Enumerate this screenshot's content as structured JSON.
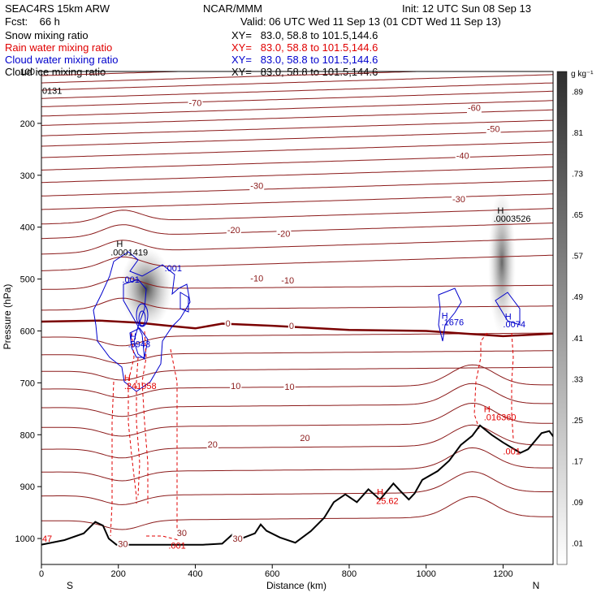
{
  "header": {
    "model": "SEAC4RS 15km ARW",
    "fcst": "Fcst:    66 h",
    "center": "NCAR/MMM",
    "init": "Init: 12 UTC Sun 08 Sep 13",
    "valid": "Valid: 06 UTC Wed 11 Sep 13 (01 CDT Wed 11 Sep 13)",
    "fields": [
      {
        "name": "Snow mixing ratio",
        "xy": "XY=   83.0, 58.8 to 101.5,144.6",
        "color": "#000000"
      },
      {
        "name": "Rain water mixing ratio",
        "xy": "XY=   83.0, 58.8 to 101.5,144.6",
        "color": "#e00000"
      },
      {
        "name": "Cloud water mixing ratio",
        "xy": "XY=   83.0, 58.8 to 101.5,144.6",
        "color": "#0000cc"
      },
      {
        "name": "Cloud ice mixing ratio",
        "xy": "XY=   83.0, 58.8 to 101.5,144.6",
        "color": "#000000"
      }
    ]
  },
  "chart_data": {
    "type": "contour-cross-section",
    "xlabel": "Distance (km)",
    "ylabel": "Pressure (hPa)",
    "xlim": [
      0,
      1330
    ],
    "ylim": [
      1050,
      100
    ],
    "xticks": [
      0,
      200,
      400,
      600,
      800,
      1000,
      1200
    ],
    "yticks": [
      100,
      200,
      300,
      400,
      500,
      600,
      700,
      800,
      900,
      1000
    ],
    "ytick_labels": [
      "100",
      "200",
      "300",
      "400",
      "500",
      "600",
      "700",
      "800",
      "900",
      "1000"
    ],
    "orientation_left": "S",
    "orientation_right": "N",
    "colorbar": {
      "unit": "g kg⁻¹",
      "levels": [
        0.01,
        0.09,
        0.17,
        0.25,
        0.33,
        0.41,
        0.49,
        0.57,
        0.65,
        0.73,
        0.81,
        0.89
      ],
      "labels": [
        ".01",
        ".09",
        ".17",
        ".25",
        ".33",
        ".41",
        ".49",
        ".57",
        ".65",
        ".73",
        ".81",
        ".89"
      ]
    },
    "temperature_contours": [
      {
        "label": "-70",
        "at_km": 400,
        "p": 160
      },
      {
        "label": "-60",
        "at_km": 1125,
        "p": 170
      },
      {
        "label": "-50",
        "at_km": 1175,
        "p": 210
      },
      {
        "label": "-40",
        "at_km": 1095,
        "p": 262
      },
      {
        "label": "-30",
        "at_km": 560,
        "p": 320
      },
      {
        "label": "-30",
        "at_km": 1085,
        "p": 346
      },
      {
        "label": "-20",
        "at_km": 500,
        "p": 405
      },
      {
        "label": "-20",
        "at_km": 630,
        "p": 412
      },
      {
        "label": "-10",
        "at_km": 560,
        "p": 498
      },
      {
        "label": "-10",
        "at_km": 640,
        "p": 502
      },
      {
        "label": "0",
        "at_km": 485,
        "p": 585
      },
      {
        "label": "0",
        "at_km": 650,
        "p": 590
      },
      {
        "label": "10",
        "at_km": 505,
        "p": 706
      },
      {
        "label": "10",
        "at_km": 645,
        "p": 707
      },
      {
        "label": "20",
        "at_km": 445,
        "p": 818
      },
      {
        "label": "20",
        "at_km": 685,
        "p": 806
      },
      {
        "label": "30",
        "at_km": 510,
        "p": 1000
      },
      {
        "label": "30",
        "at_km": 365,
        "p": 989
      },
      {
        "label": "30",
        "at_km": 212,
        "p": 1010
      }
    ],
    "freezing_level": [
      [
        0,
        582
      ],
      [
        150,
        580
      ],
      [
        250,
        584
      ],
      [
        330,
        590
      ],
      [
        400,
        595
      ],
      [
        470,
        586
      ],
      [
        600,
        590
      ],
      [
        800,
        598
      ],
      [
        1000,
        600
      ],
      [
        1100,
        605
      ],
      [
        1200,
        610
      ],
      [
        1330,
        605
      ]
    ],
    "terrain": [
      [
        0,
        1012
      ],
      [
        60,
        1003
      ],
      [
        110,
        990
      ],
      [
        140,
        968
      ],
      [
        160,
        975
      ],
      [
        175,
        1000
      ],
      [
        195,
        1012
      ],
      [
        260,
        1012
      ],
      [
        330,
        1012
      ],
      [
        380,
        1012
      ],
      [
        420,
        1012
      ],
      [
        470,
        1010
      ],
      [
        495,
        993
      ],
      [
        520,
        1000
      ],
      [
        555,
        990
      ],
      [
        570,
        973
      ],
      [
        585,
        985
      ],
      [
        620,
        998
      ],
      [
        660,
        1008
      ],
      [
        700,
        986
      ],
      [
        735,
        960
      ],
      [
        760,
        930
      ],
      [
        790,
        915
      ],
      [
        820,
        930
      ],
      [
        850,
        905
      ],
      [
        880,
        925
      ],
      [
        915,
        894
      ],
      [
        935,
        910
      ],
      [
        955,
        925
      ],
      [
        970,
        913
      ],
      [
        990,
        887
      ],
      [
        1030,
        870
      ],
      [
        1060,
        850
      ],
      [
        1090,
        820
      ],
      [
        1120,
        802
      ],
      [
        1140,
        782
      ],
      [
        1170,
        800
      ],
      [
        1200,
        815
      ],
      [
        1245,
        835
      ],
      [
        1265,
        828
      ],
      [
        1300,
        797
      ],
      [
        1320,
        793
      ],
      [
        1335,
        808
      ]
    ],
    "annotations": [
      {
        "text": "0131",
        "color": "#000000",
        "at_km": 2,
        "p": 137
      },
      {
        "text": "47",
        "color": "#e00000",
        "at_km": 2,
        "p": 1000
      },
      {
        "text": "H",
        "color": "#000000",
        "at_km": 195,
        "p": 432
      },
      {
        "text": ".0001419",
        "color": "#000000",
        "at_km": 180,
        "p": 448
      },
      {
        "text": ".001",
        "color": "#0000cc",
        "at_km": 210,
        "p": 501
      },
      {
        "text": ".001",
        "color": "#0000cc",
        "at_km": 320,
        "p": 479
      },
      {
        "text": "H",
        "color": "#0000cc",
        "at_km": 230,
        "p": 610
      },
      {
        "text": ".5943",
        "color": "#0000cc",
        "at_km": 225,
        "p": 625
      },
      {
        "text": "H",
        "color": "#e00000",
        "at_km": 215,
        "p": 690
      },
      {
        "text": ".241958",
        "color": "#e00000",
        "at_km": 215,
        "p": 706
      },
      {
        "text": "H",
        "color": "#000000",
        "at_km": 1185,
        "p": 368
      },
      {
        "text": ".0003526",
        "color": "#000000",
        "at_km": 1175,
        "p": 383
      },
      {
        "text": "H",
        "color": "#0000cc",
        "at_km": 1040,
        "p": 570
      },
      {
        "text": ".1676",
        "color": "#0000cc",
        "at_km": 1040,
        "p": 583
      },
      {
        "text": "H",
        "color": "#0000cc",
        "at_km": 1205,
        "p": 572
      },
      {
        "text": ".0074",
        "color": "#0000cc",
        "at_km": 1200,
        "p": 587
      },
      {
        "text": "H",
        "color": "#e00000",
        "at_km": 1150,
        "p": 750
      },
      {
        "text": ".016360",
        "color": "#e00000",
        "at_km": 1150,
        "p": 766
      },
      {
        "text": ".001",
        "color": "#e00000",
        "at_km": 1200,
        "p": 832
      },
      {
        "text": "H",
        "color": "#e00000",
        "at_km": 872,
        "p": 910
      },
      {
        "text": "25.62",
        "color": "#e00000",
        "at_km": 870,
        "p": 927
      },
      {
        "text": ".001",
        "color": "#e00000",
        "at_km": 330,
        "p": 1013
      }
    ]
  }
}
